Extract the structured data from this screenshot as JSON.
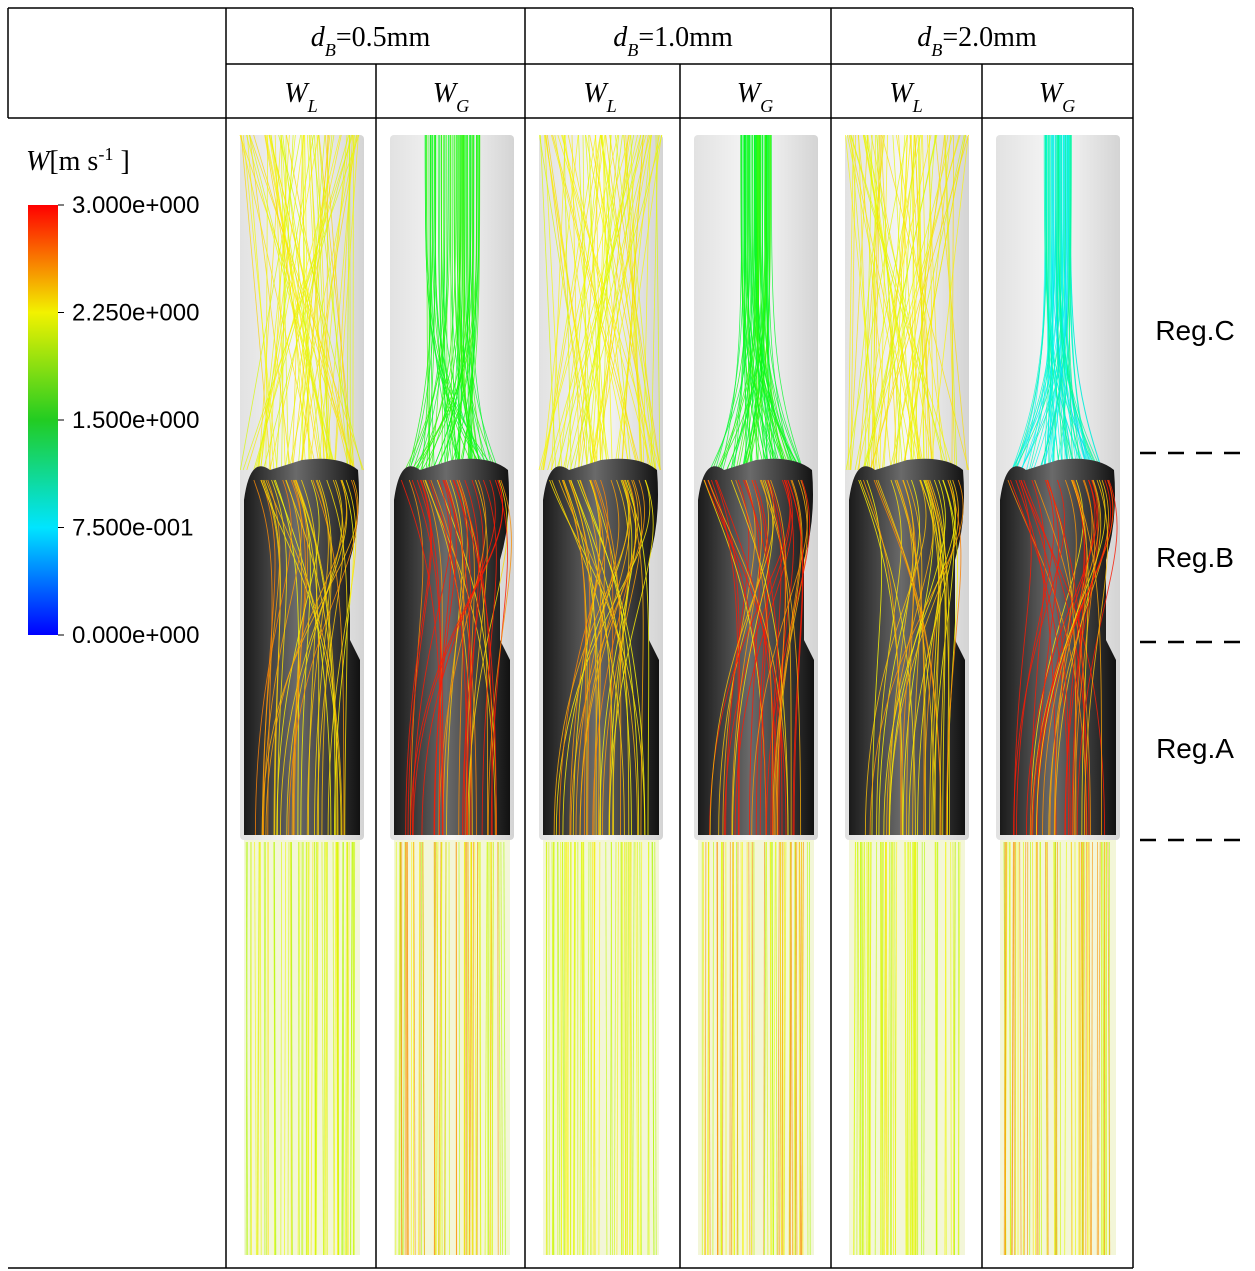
{
  "groups": [
    {
      "var": "d",
      "sub": "B",
      "value": "=0.5mm"
    },
    {
      "var": "d",
      "sub": "B",
      "value": "=1.0mm"
    },
    {
      "var": "d",
      "sub": "B",
      "value": "=2.0mm"
    }
  ],
  "columns": [
    {
      "var": "W",
      "sub": "L"
    },
    {
      "var": "W",
      "sub": "G"
    },
    {
      "var": "W",
      "sub": "L"
    },
    {
      "var": "W",
      "sub": "G"
    },
    {
      "var": "W",
      "sub": "L"
    },
    {
      "var": "W",
      "sub": "G"
    }
  ],
  "colorbar": {
    "title": {
      "var": "W",
      "unit": "[m s",
      "sup": "-1",
      "close": " ]"
    },
    "range": [
      0,
      3
    ],
    "ticks": [
      {
        "value": 3,
        "label": "3.000e+000"
      },
      {
        "value": 2.25,
        "label": "2.250e+000"
      },
      {
        "value": 1.5,
        "label": "1.500e+000"
      },
      {
        "value": 0.75,
        "label": "7.500e-001"
      },
      {
        "value": 0,
        "label": "0.000e+000"
      }
    ]
  },
  "regions": [
    "Reg.C",
    "Reg.B",
    "Reg.A"
  ]
}
